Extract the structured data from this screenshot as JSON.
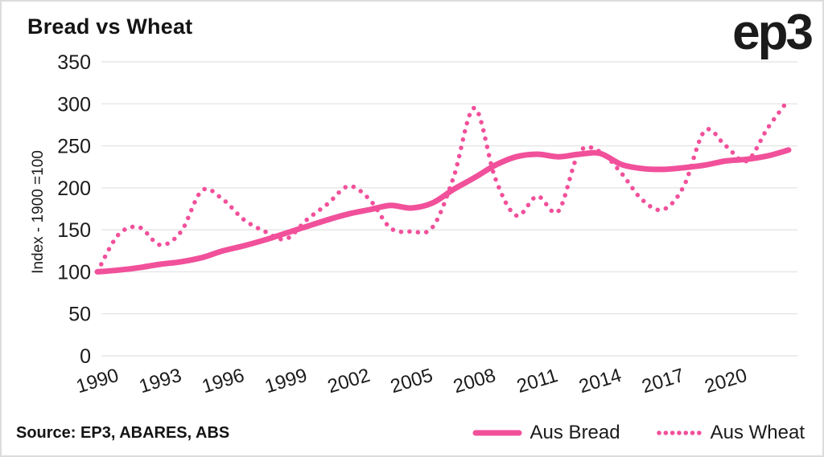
{
  "header": {
    "title": "Bread vs Wheat",
    "logo": "ep3"
  },
  "footer": {
    "source": "Source: EP3, ABARES, ABS"
  },
  "colors": {
    "accent": "#F1509B",
    "grid": "#E6E6E6",
    "text": "#1B1B1B",
    "border": "#DCDCDC",
    "background": "#FFFFFF"
  },
  "chart_data": {
    "type": "line",
    "title": "Bread vs Wheat",
    "xlabel": "",
    "ylabel": "Index - 1900 =100",
    "ylim": [
      0,
      350
    ],
    "y_ticks": [
      0,
      50,
      100,
      150,
      200,
      250,
      300,
      350
    ],
    "x_ticks": [
      "1990",
      "1993",
      "1996",
      "1999",
      "2002",
      "2005",
      "2008",
      "2011",
      "2014",
      "2017",
      "2020"
    ],
    "grid": "horizontal-only",
    "legend_position": "bottom-right",
    "x": [
      1990,
      1991,
      1992,
      1993,
      1994,
      1995,
      1996,
      1997,
      1998,
      1999,
      2000,
      2001,
      2002,
      2003,
      2004,
      2005,
      2006,
      2007,
      2008,
      2009,
      2010,
      2011,
      2012,
      2013,
      2014,
      2015,
      2016,
      2017,
      2018,
      2019,
      2020,
      2021,
      2022,
      2023
    ],
    "series": [
      {
        "name": "Aus Bread",
        "style": "solid",
        "color": "#F1509B",
        "values": [
          100,
          102,
          105,
          109,
          112,
          117,
          125,
          131,
          138,
          146,
          154,
          162,
          169,
          174,
          179,
          176,
          182,
          198,
          212,
          227,
          237,
          240,
          237,
          240,
          241,
          228,
          223,
          222,
          224,
          227,
          232,
          234,
          238,
          245
        ]
      },
      {
        "name": "Aus Wheat",
        "style": "dotted",
        "color": "#F1509B",
        "values": [
          100,
          144,
          153,
          132,
          148,
          197,
          186,
          162,
          148,
          139,
          162,
          181,
          202,
          186,
          152,
          148,
          153,
          212,
          295,
          211,
          167,
          190,
          172,
          242,
          243,
          218,
          186,
          174,
          202,
          268,
          250,
          232,
          271,
          305
        ]
      }
    ]
  }
}
